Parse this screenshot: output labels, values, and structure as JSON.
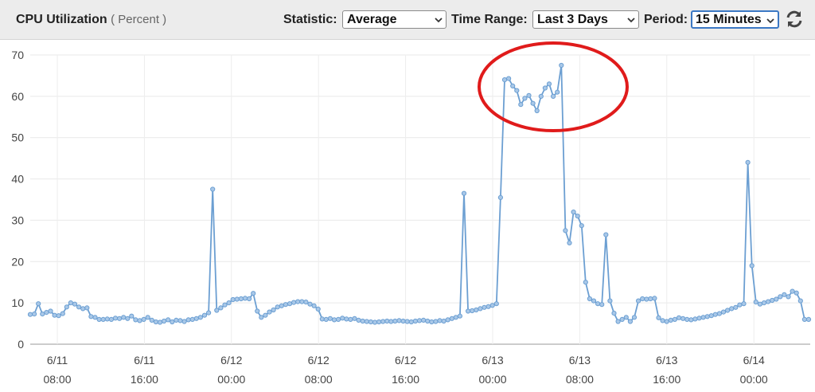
{
  "header": {
    "title": "CPU Utilization",
    "subtitle": "( Percent )",
    "statistic_label": "Statistic:",
    "statistic_value": "Average",
    "time_range_label": "Time Range:",
    "time_range_value": "Last 3 Days",
    "period_label": "Period:",
    "period_value": "15 Minutes"
  },
  "chart_data": {
    "type": "line",
    "y_ticks": [
      0,
      10,
      20,
      30,
      40,
      50,
      60,
      70
    ],
    "ylim": [
      0,
      70
    ],
    "x_ticks": [
      {
        "date": "6/11",
        "time": "08:00"
      },
      {
        "date": "6/11",
        "time": "16:00"
      },
      {
        "date": "6/12",
        "time": "00:00"
      },
      {
        "date": "6/12",
        "time": "08:00"
      },
      {
        "date": "6/12",
        "time": "16:00"
      },
      {
        "date": "6/13",
        "time": "00:00"
      },
      {
        "date": "6/13",
        "time": "08:00"
      },
      {
        "date": "6/13",
        "time": "16:00"
      },
      {
        "date": "6/14",
        "time": "00:00"
      }
    ],
    "grid": true,
    "line_color": "#6c9fd2",
    "annotation_color": "#e01b1b",
    "values": [
      7.2,
      7.3,
      9.8,
      7.3,
      7.7,
      8,
      7,
      6.9,
      7.4,
      9,
      10,
      9.7,
      9,
      8.6,
      8.8,
      6.7,
      6.5,
      6,
      6,
      6.1,
      6,
      6.3,
      6.2,
      6.5,
      6.2,
      6.8,
      5.9,
      5.7,
      6,
      6.5,
      5.8,
      5.4,
      5.3,
      5.6,
      5.9,
      5.4,
      5.8,
      5.7,
      5.5,
      5.9,
      6,
      6.2,
      6.5,
      7,
      7.6,
      37.5,
      8.2,
      8.8,
      9.5,
      10,
      10.8,
      10.9,
      11,
      11.1,
      11,
      12.3,
      8,
      6.5,
      7,
      7.8,
      8.3,
      9,
      9.3,
      9.6,
      9.8,
      10.1,
      10.3,
      10.3,
      10.2,
      9.7,
      9.3,
      8.5,
      6.1,
      6,
      6.2,
      5.9,
      6,
      6.3,
      6.1,
      6,
      6.2,
      5.8,
      5.6,
      5.5,
      5.4,
      5.3,
      5.4,
      5.5,
      5.6,
      5.5,
      5.6,
      5.7,
      5.6,
      5.5,
      5.4,
      5.6,
      5.7,
      5.8,
      5.6,
      5.4,
      5.5,
      5.7,
      5.6,
      5.9,
      6.2,
      6.5,
      6.8,
      36.5,
      8,
      8.1,
      8.3,
      8.6,
      8.9,
      9.1,
      9.4,
      9.8,
      35.5,
      64,
      64.3,
      62.5,
      61.4,
      58,
      59.5,
      60.2,
      58.3,
      56.5,
      60,
      62,
      63,
      60,
      61,
      67.5,
      27.5,
      24.5,
      32,
      31,
      28.7,
      15,
      11,
      10.5,
      9.8,
      9.6,
      26.5,
      10.5,
      7.5,
      5.5,
      6,
      6.5,
      5.5,
      6.5,
      10.5,
      11,
      10.9,
      11,
      11.1,
      6.4,
      5.7,
      5.5,
      5.8,
      6,
      6.4,
      6.2,
      6,
      5.9,
      6.1,
      6.3,
      6.5,
      6.7,
      6.9,
      7.2,
      7.4,
      7.8,
      8.2,
      8.6,
      8.9,
      9.5,
      9.8,
      44,
      19,
      10.2,
      9.7,
      10,
      10.3,
      10.6,
      10.9,
      11.5,
      12,
      11.5,
      12.8,
      12.4,
      10.5,
      6,
      6
    ]
  }
}
